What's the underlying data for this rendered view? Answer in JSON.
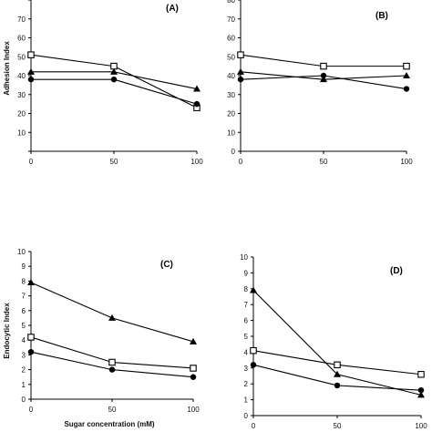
{
  "chart_data": [
    {
      "type": "line",
      "panel_label": "(A)",
      "ylabel": "Adhesion Index",
      "xlabel": "",
      "x": [
        0,
        50,
        100
      ],
      "xticks": [
        "0",
        "50",
        "100"
      ],
      "ylim": [
        0,
        80
      ],
      "yticks": [
        "",
        "10",
        "20",
        "30",
        "40",
        "50",
        "60",
        "70",
        ""
      ],
      "series": [
        {
          "marker": "square",
          "values": [
            51,
            45,
            23
          ]
        },
        {
          "marker": "triangle",
          "values": [
            42,
            42,
            33
          ]
        },
        {
          "marker": "circle",
          "values": [
            38,
            38,
            25
          ]
        }
      ]
    },
    {
      "type": "line",
      "panel_label": "(B)",
      "ylabel": "",
      "xlabel": "",
      "x": [
        0,
        50,
        100
      ],
      "xticks": [
        "0",
        "50",
        "100"
      ],
      "ylim": [
        0,
        80
      ],
      "yticks": [
        "0",
        "10",
        "20",
        "30",
        "40",
        "50",
        "60",
        "70",
        "80"
      ],
      "series": [
        {
          "marker": "square",
          "values": [
            51,
            45,
            45
          ]
        },
        {
          "marker": "triangle",
          "values": [
            42,
            38,
            40
          ]
        },
        {
          "marker": "circle",
          "values": [
            38,
            40,
            33
          ]
        }
      ]
    },
    {
      "type": "line",
      "panel_label": "(C)",
      "ylabel": "Endocytic Index",
      "xlabel": "Sugar concentration (mM)",
      "x": [
        0,
        50,
        100
      ],
      "xticks": [
        "0",
        "50",
        "100"
      ],
      "ylim": [
        0,
        10
      ],
      "yticks": [
        "0",
        "1",
        "2",
        "3",
        "4",
        "5",
        "6",
        "7",
        "8",
        "9",
        "10"
      ],
      "series": [
        {
          "marker": "triangle",
          "values": [
            7.9,
            5.5,
            3.9
          ]
        },
        {
          "marker": "square",
          "values": [
            4.2,
            2.5,
            2.1
          ]
        },
        {
          "marker": "circle",
          "values": [
            3.2,
            2.0,
            1.5
          ]
        }
      ]
    },
    {
      "type": "line",
      "panel_label": "(D)",
      "ylabel": "",
      "xlabel": "",
      "x": [
        0,
        50,
        100
      ],
      "xticks": [
        "0",
        "50",
        "100"
      ],
      "ylim": [
        0,
        10
      ],
      "yticks": [
        "0",
        "1",
        "2",
        "3",
        "4",
        "5",
        "6",
        "7",
        "8",
        "9",
        "10"
      ],
      "series": [
        {
          "marker": "triangle",
          "values": [
            7.9,
            2.6,
            1.3
          ]
        },
        {
          "marker": "square",
          "values": [
            4.1,
            3.2,
            2.6
          ]
        },
        {
          "marker": "circle",
          "values": [
            3.2,
            1.9,
            1.6
          ]
        }
      ]
    }
  ]
}
